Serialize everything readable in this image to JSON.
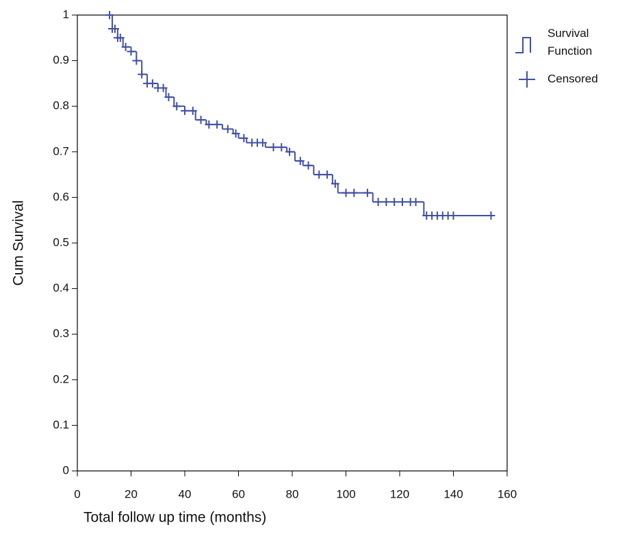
{
  "chart_data": {
    "type": "survival",
    "xlabel": "Total follow up time (months)",
    "ylabel": "Cum Survival",
    "xlim": [
      0,
      160
    ],
    "ylim": [
      0,
      1
    ],
    "xticks": [
      0,
      20,
      40,
      60,
      80,
      100,
      120,
      140,
      160
    ],
    "yticks": [
      0,
      0.1,
      0.2,
      0.3,
      0.4,
      0.5,
      0.6,
      0.7,
      0.8,
      0.9,
      1
    ],
    "series": [
      {
        "name": "Survival Function",
        "color": "#3f4fa6",
        "x": [
          12,
          13,
          15,
          17,
          20,
          22,
          24,
          26,
          30,
          33,
          36,
          40,
          44,
          48,
          54,
          58,
          60,
          63,
          70,
          78,
          81,
          84,
          88,
          95,
          97,
          110,
          129,
          154
        ],
        "values": [
          1.0,
          0.97,
          0.95,
          0.93,
          0.92,
          0.9,
          0.87,
          0.85,
          0.84,
          0.82,
          0.8,
          0.79,
          0.77,
          0.76,
          0.75,
          0.74,
          0.73,
          0.72,
          0.71,
          0.7,
          0.68,
          0.67,
          0.65,
          0.63,
          0.61,
          0.59,
          0.56,
          0.56
        ]
      },
      {
        "name": "Censored",
        "color": "#3f4fa6",
        "x": [
          12,
          13,
          14,
          15,
          16,
          18,
          20,
          22,
          24,
          26,
          28,
          30,
          32,
          34,
          37,
          40,
          43,
          46,
          49,
          52,
          56,
          59,
          62,
          65,
          67,
          69,
          73,
          76,
          79,
          83,
          86,
          90,
          93,
          96,
          100,
          103,
          108,
          112,
          115,
          118,
          121,
          124,
          126,
          130,
          132,
          134,
          136,
          138,
          140,
          154
        ],
        "values": [
          1.0,
          0.97,
          0.97,
          0.95,
          0.95,
          0.93,
          0.92,
          0.9,
          0.87,
          0.85,
          0.85,
          0.84,
          0.84,
          0.82,
          0.8,
          0.79,
          0.79,
          0.77,
          0.76,
          0.76,
          0.75,
          0.74,
          0.73,
          0.72,
          0.72,
          0.72,
          0.71,
          0.71,
          0.7,
          0.68,
          0.67,
          0.65,
          0.65,
          0.63,
          0.61,
          0.61,
          0.61,
          0.59,
          0.59,
          0.59,
          0.59,
          0.59,
          0.59,
          0.56,
          0.56,
          0.56,
          0.56,
          0.56,
          0.56,
          0.56
        ]
      }
    ]
  }
}
